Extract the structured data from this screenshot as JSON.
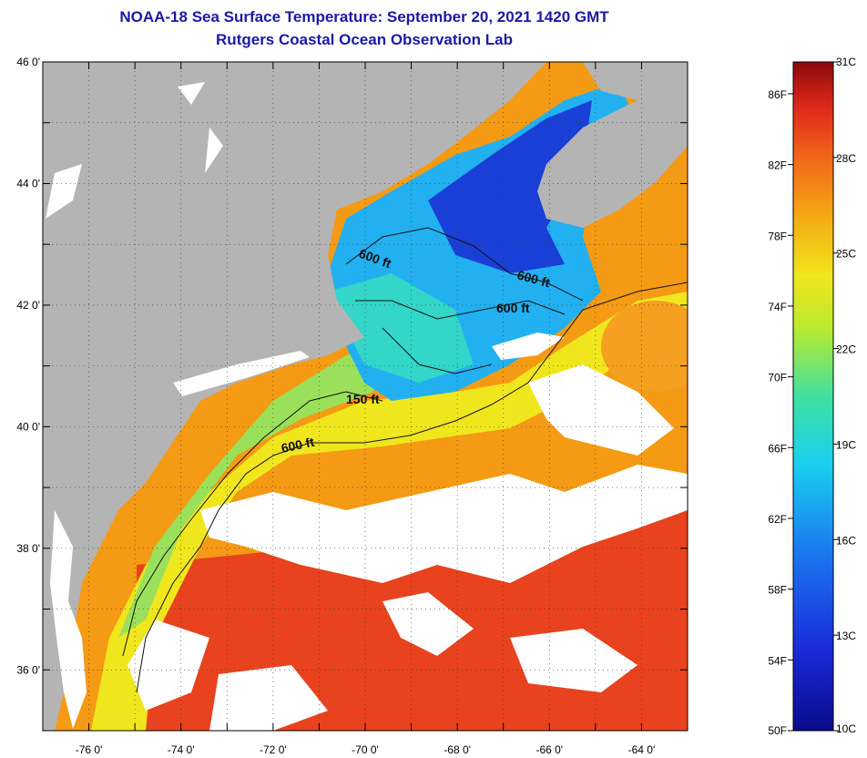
{
  "title": {
    "line1": "NOAA-18 Sea Surface Temperature:  September 20, 2021 1420 GMT",
    "line2": "Rutgers Coastal Ocean Observation Lab"
  },
  "map": {
    "lat_labels": [
      "46 0'",
      "44 0'",
      "42 0'",
      "40 0'",
      "38 0'",
      "36 0'"
    ],
    "lon_labels": [
      "-76 0'",
      "-74 0'",
      "-72 0'",
      "-70 0'",
      "-68 0'",
      "-66 0'",
      "-64 0'"
    ],
    "contour_labels": [
      "600 ft",
      "600 ft",
      "600 ft",
      "150 ft",
      "600 ft"
    ],
    "colors": {
      "land": "#b4b4b4",
      "cloud": "#ffffff",
      "cold": "#1a3fd6",
      "cool": "#22b0f0",
      "teal": "#33d6c8",
      "green": "#9be05a",
      "yellow": "#f0e61e",
      "orange": "#f59a14",
      "red": "#e8321e"
    }
  },
  "colorbar": {
    "min_c": 10,
    "max_c": 31,
    "fahrenheit_labels": [
      "86F",
      "82F",
      "78F",
      "74F",
      "70F",
      "66F",
      "62F",
      "58F",
      "54F",
      "50F"
    ],
    "celsius_labels": [
      "31C",
      "28C",
      "25C",
      "22C",
      "19C",
      "16C",
      "13C",
      "10C"
    ]
  }
}
